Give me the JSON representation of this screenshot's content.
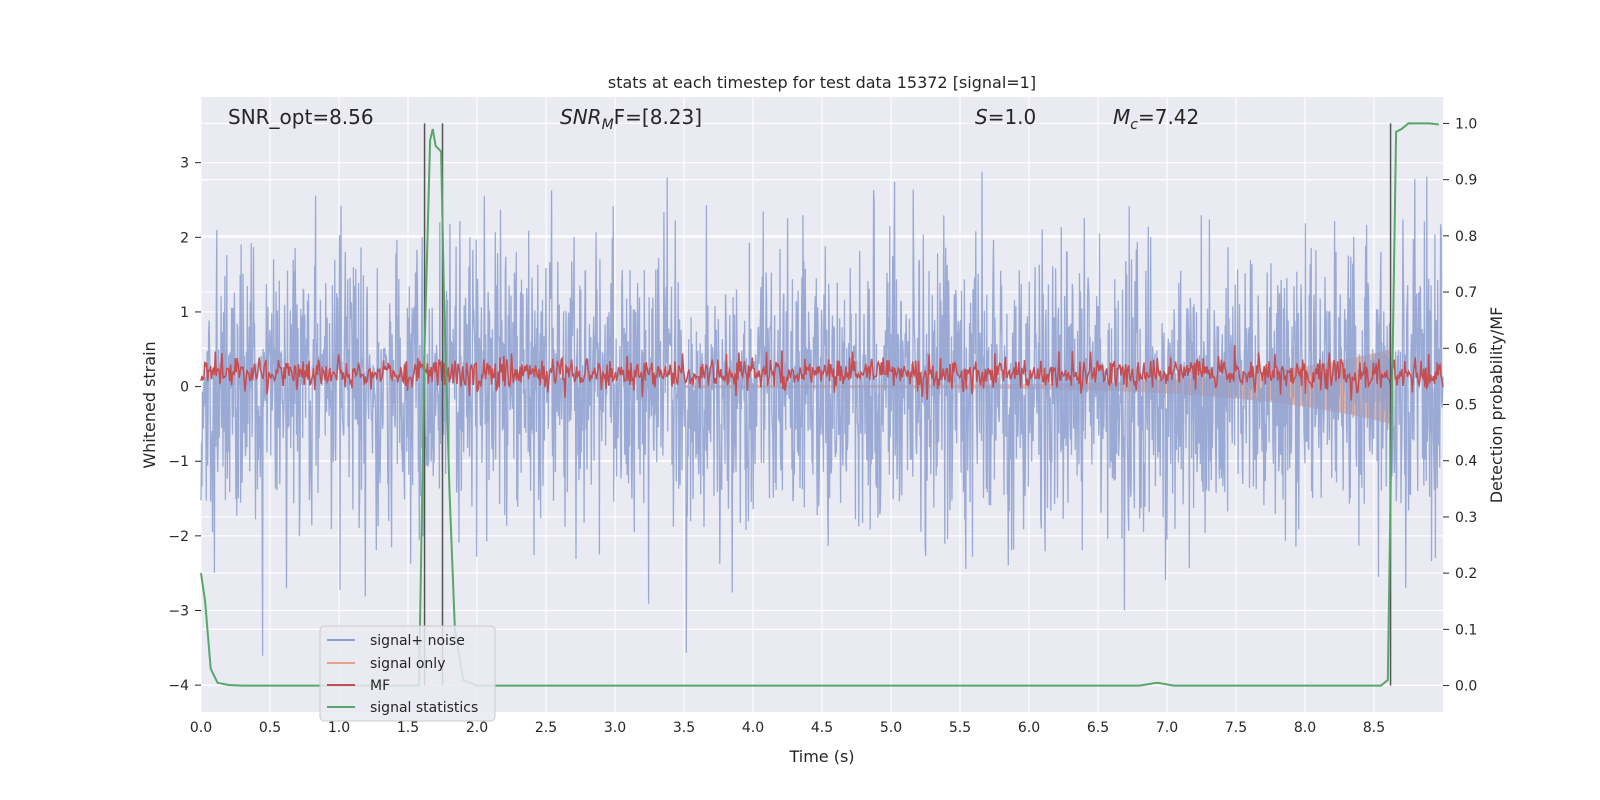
{
  "chart_data": {
    "type": "line",
    "title": "stats at each timestep for test data 15372 [signal=1]",
    "xlabel": "Time (s)",
    "ylabel": "Whitened strain",
    "ylabel_right": "Detection probability/MF",
    "xlim": [
      0.0,
      9.0
    ],
    "ylim": [
      -4.36,
      3.88
    ],
    "ylim_right": [
      -0.047,
      1.047
    ],
    "x_ticks": [
      "0.0",
      "0.5",
      "1.0",
      "1.5",
      "2.0",
      "2.5",
      "3.0",
      "3.5",
      "4.0",
      "4.5",
      "5.0",
      "5.5",
      "6.0",
      "6.5",
      "7.0",
      "7.5",
      "8.0",
      "8.5"
    ],
    "y_ticks": [
      "3",
      "2",
      "1",
      "0",
      "−1",
      "−2",
      "−3",
      "−4"
    ],
    "y_ticks_right": [
      "1.0",
      "0.9",
      "0.8",
      "0.7",
      "0.6",
      "0.5",
      "0.4",
      "0.3",
      "0.2",
      "0.1",
      "0.0"
    ],
    "annotations": {
      "snr_opt": "SNR_opt=8.56",
      "snr_mf_base": "SNR",
      "snr_mf_sub": "M",
      "snr_mf_rest": "F=[8.23]",
      "s_var": "S",
      "s_rest": "=1.0",
      "mc_var": "M",
      "mc_sub": "c",
      "mc_rest": "=7.42"
    },
    "vlines_x": [
      1.62,
      1.75,
      8.62
    ],
    "series": [
      {
        "name": "signal+ noise",
        "color": "#8c9fd0",
        "axis": "left",
        "style": "noise, std ≈ 0.9, range ≈ [-4, 3.5]"
      },
      {
        "name": "signal only",
        "color": "#e8a087",
        "axis": "left",
        "style": "chirp, amplitude rising to ≈ 0.5 near t = 8.6 s"
      },
      {
        "name": "MF",
        "color": "#c44e52",
        "axis": "right",
        "style": "noisy band around ≈ 0.56"
      },
      {
        "name": "signal statistics",
        "color": "#55a868",
        "axis": "right",
        "x": [
          0.0,
          0.03,
          0.07,
          0.12,
          0.2,
          0.3,
          0.5,
          1.0,
          1.5,
          1.58,
          1.62,
          1.66,
          1.68,
          1.7,
          1.74,
          1.76,
          1.8,
          1.84,
          1.9,
          2.0,
          3.0,
          4.0,
          5.0,
          6.0,
          6.5,
          6.8,
          6.93,
          7.05,
          7.3,
          8.0,
          8.5,
          8.55,
          8.6,
          8.63,
          8.66,
          8.7,
          8.75,
          8.8,
          8.9,
          8.97
        ],
        "y": [
          0.2,
          0.15,
          0.03,
          0.005,
          0.001,
          0.0,
          0.0,
          0.0,
          0.0,
          0.0,
          0.6,
          0.97,
          0.99,
          0.96,
          0.95,
          0.7,
          0.35,
          0.1,
          0.01,
          0.0,
          0.0,
          0.0,
          0.0,
          0.0,
          0.0,
          0.0,
          0.005,
          0.0,
          0.0,
          0.0,
          0.0,
          0.0,
          0.01,
          0.5,
          0.985,
          0.99,
          1.0,
          1.0,
          1.0,
          0.998
        ]
      }
    ],
    "legend_position": "lower-left",
    "grid": true
  }
}
